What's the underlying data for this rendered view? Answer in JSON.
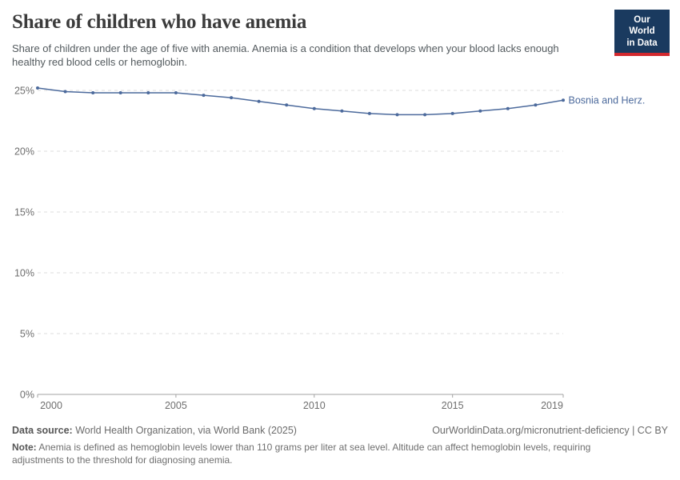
{
  "header": {
    "title": "Share of children who have anemia",
    "subtitle": "Share of children under the age of five with anemia. Anemia is a condition that develops when your blood lacks enough healthy red blood cells or hemoglobin.",
    "logo": {
      "line1": "Our World",
      "line2": "in Data"
    }
  },
  "chart_data": {
    "type": "line",
    "title": "Share of children who have anemia",
    "x": [
      2000,
      2001,
      2002,
      2003,
      2004,
      2005,
      2006,
      2007,
      2008,
      2009,
      2010,
      2011,
      2012,
      2013,
      2014,
      2015,
      2016,
      2017,
      2018,
      2019
    ],
    "series": [
      {
        "name": "Bosnia and Herz.",
        "values": [
          25.2,
          24.9,
          24.8,
          24.8,
          24.8,
          24.8,
          24.6,
          24.4,
          24.1,
          23.8,
          23.5,
          23.3,
          23.1,
          23.0,
          23.0,
          23.1,
          23.3,
          23.5,
          23.8,
          24.2
        ]
      }
    ],
    "xlabel": "",
    "ylabel": "",
    "xlim": [
      2000,
      2019
    ],
    "ylim": [
      0,
      25
    ],
    "x_ticks": [
      2000,
      2005,
      2010,
      2015,
      2019
    ],
    "y_ticks": [
      0,
      5,
      10,
      15,
      20,
      25
    ],
    "y_tick_suffix": "%",
    "grid": "horizontal-dashed",
    "point_markers": true,
    "legend_position": "end-of-line-label"
  },
  "footer": {
    "source_label": "Data source:",
    "source_text": " World Health Organization, via World Bank (2025)",
    "link_text": "OurWorldinData.org/micronutrient-deficiency | CC BY",
    "note_label": "Note:",
    "note_text": " Anemia is defined as hemoglobin levels lower than 110 grams per liter at sea level. Altitude can affect hemoglobin levels, requiring adjustments to the threshold for diagnosing anemia."
  },
  "colors": {
    "series_line": "#4c6a9c",
    "series_label": "#4c6a9c",
    "grid_line": "#dcdcdc",
    "axis_line": "#a3a3a3",
    "tick_label": "#6e6e6e",
    "title_text": "#3b3b3b",
    "subtitle_text": "#535a5e",
    "logo_bg": "#1a3a5f",
    "logo_accent": "#d2282e"
  }
}
